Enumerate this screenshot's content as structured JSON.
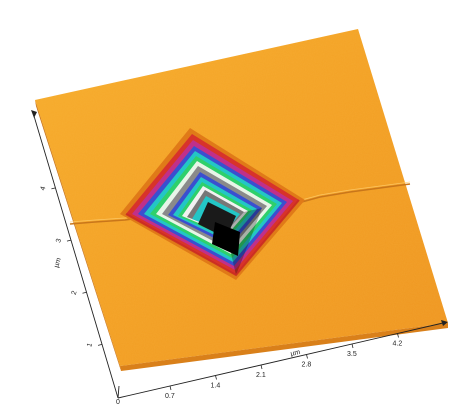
{
  "figure": {
    "kind": "AFM 3D topography of a pyramidal indentation",
    "colors": {
      "surface_light": "#f7b02e",
      "surface_mid": "#f29a1c",
      "surface_dark": "#e8871a",
      "rim_red": "#d8332a",
      "rim_magenta": "#c0308a",
      "blue": "#3a4fd0",
      "cyan": "#23c6c6",
      "green": "#2fd06b",
      "gray": "#8a8a8a",
      "pit": "#1a1a1a"
    }
  },
  "x_axis": {
    "title": "µm",
    "origin_label": "0",
    "ticks": [
      "0.7",
      "1.4",
      "2.1",
      "2.8",
      "3.5",
      "4.2"
    ]
  },
  "y_axis": {
    "title": "µm",
    "ticks": [
      "1",
      "2",
      "3",
      "4"
    ]
  }
}
